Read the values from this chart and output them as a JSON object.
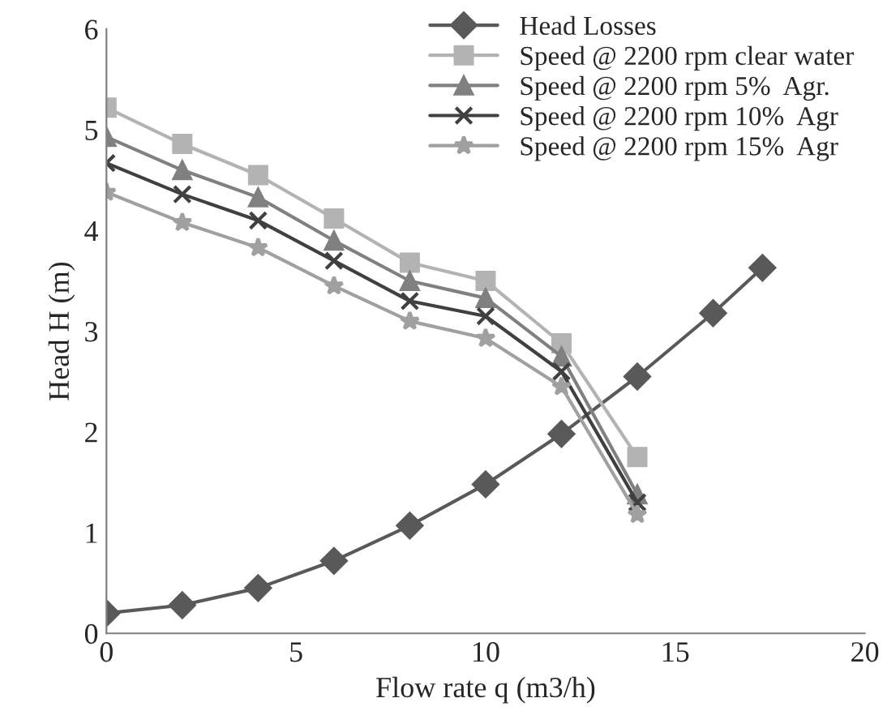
{
  "chart_data": {
    "type": "line",
    "xlabel": "Flow rate q (m3/h)",
    "ylabel": "Head H (m)",
    "xlim": [
      0,
      20
    ],
    "xticks": [
      0,
      5,
      10,
      15,
      20
    ],
    "ylim": [
      0,
      6
    ],
    "yticks": [
      0,
      1,
      2,
      3,
      4,
      5,
      6
    ],
    "grid": false,
    "legend": "top right",
    "series": [
      {
        "name": "Head Losses",
        "color": "#595959",
        "marker": "diamond",
        "x": [
          0,
          2,
          4,
          6,
          8,
          10,
          12,
          14,
          16,
          17.3
        ],
        "values": [
          0.2,
          0.28,
          0.45,
          0.72,
          1.07,
          1.48,
          1.98,
          2.55,
          3.18,
          3.63
        ]
      },
      {
        "name": "Speed @ 2200 rpm clear water",
        "color": "#b3b3b3",
        "marker": "square",
        "x": [
          0,
          2,
          4,
          6,
          8,
          10,
          12,
          14
        ],
        "values": [
          5.22,
          4.86,
          4.55,
          4.12,
          3.68,
          3.5,
          2.88,
          1.75
        ]
      },
      {
        "name": "Speed @ 2200 rpm 5%  Agr.",
        "color": "#808080",
        "marker": "triangle",
        "x": [
          0,
          2,
          4,
          6,
          8,
          10,
          12,
          14
        ],
        "values": [
          4.93,
          4.6,
          4.33,
          3.9,
          3.5,
          3.33,
          2.75,
          1.38
        ]
      },
      {
        "name": "Speed @ 2200 rpm 10%  Agr",
        "color": "#404040",
        "marker": "cross",
        "x": [
          0,
          2,
          4,
          6,
          8,
          10,
          12,
          14
        ],
        "values": [
          4.67,
          4.36,
          4.1,
          3.7,
          3.3,
          3.15,
          2.6,
          1.3
        ]
      },
      {
        "name": "Speed @ 2200 rpm 15%  Agr",
        "color": "#a0a0a0",
        "marker": "star",
        "x": [
          0,
          2,
          4,
          6,
          8,
          10,
          12,
          14
        ],
        "values": [
          4.38,
          4.08,
          3.83,
          3.45,
          3.1,
          2.93,
          2.45,
          1.18
        ]
      }
    ]
  }
}
